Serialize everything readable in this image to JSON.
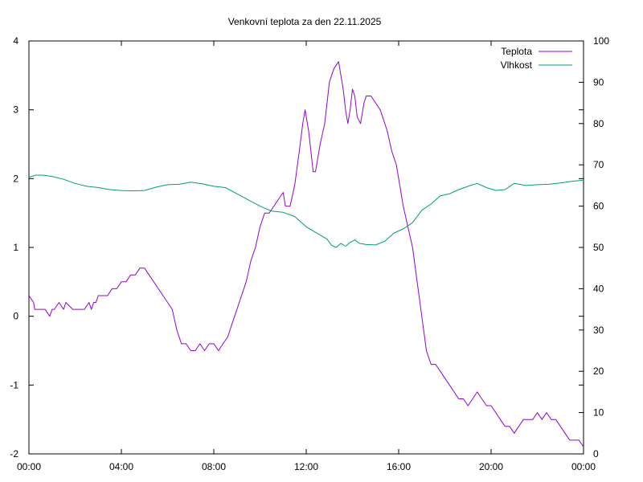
{
  "chart_data": {
    "type": "line",
    "title": "Venkovní teplota za den 22.11.2025",
    "xlabel": "",
    "ylabel": "",
    "y2label": "",
    "x_ticks": [
      "00:00",
      "04:00",
      "08:00",
      "12:00",
      "16:00",
      "20:00",
      "00:00"
    ],
    "xlim_hours": [
      0,
      24
    ],
    "ylim": [
      -2,
      4
    ],
    "y2lim": [
      0,
      100
    ],
    "y_ticks": [
      -2,
      -1,
      0,
      1,
      2,
      3,
      4
    ],
    "y2_ticks": [
      0,
      10,
      20,
      30,
      40,
      50,
      60,
      70,
      80,
      90,
      100
    ],
    "grid": false,
    "legend_position": "top-right",
    "series": [
      {
        "name": "Teplota",
        "axis": "left",
        "color": "#9400d3",
        "x": [
          0,
          0.2,
          0.25,
          0.5,
          0.7,
          0.9,
          1.0,
          1.1,
          1.3,
          1.5,
          1.6,
          1.9,
          2.0,
          2.2,
          2.4,
          2.6,
          2.7,
          2.8,
          2.9,
          3.0,
          3.2,
          3.4,
          3.6,
          3.8,
          4.0,
          4.2,
          4.4,
          4.6,
          4.8,
          5.0,
          5.2,
          5.4,
          5.6,
          5.8,
          6.0,
          6.2,
          6.4,
          6.6,
          6.8,
          7.0,
          7.2,
          7.4,
          7.6,
          7.8,
          8.0,
          8.2,
          8.4,
          8.6,
          8.8,
          9.0,
          9.2,
          9.4,
          9.6,
          9.8,
          10.0,
          10.2,
          10.4,
          10.6,
          10.8,
          11.0,
          11.1,
          11.3,
          11.5,
          11.7,
          11.85,
          11.95,
          12.0,
          12.1,
          12.2,
          12.3,
          12.4,
          12.5,
          12.6,
          12.8,
          13.0,
          13.1,
          13.2,
          13.4,
          13.5,
          13.6,
          13.7,
          13.8,
          13.9,
          14.0,
          14.1,
          14.2,
          14.35,
          14.5,
          14.6,
          14.8,
          15.0,
          15.2,
          15.3,
          15.5,
          15.7,
          15.9,
          16.0,
          16.2,
          16.4,
          16.6,
          16.8,
          17.0,
          17.2,
          17.4,
          17.6,
          17.8,
          18.0,
          18.2,
          18.4,
          18.6,
          18.8,
          19.0,
          19.2,
          19.4,
          19.6,
          19.8,
          20.0,
          20.2,
          20.4,
          20.6,
          20.8,
          21.0,
          21.2,
          21.4,
          21.6,
          21.8,
          22.0,
          22.2,
          22.4,
          22.6,
          22.8,
          23.0,
          23.2,
          23.4,
          23.6,
          23.8,
          24.0
        ],
        "values": [
          0.3,
          0.2,
          0.1,
          0.1,
          0.1,
          0.0,
          0.1,
          0.1,
          0.2,
          0.1,
          0.2,
          0.1,
          0.1,
          0.1,
          0.1,
          0.2,
          0.1,
          0.2,
          0.2,
          0.3,
          0.3,
          0.3,
          0.4,
          0.4,
          0.5,
          0.5,
          0.6,
          0.6,
          0.7,
          0.7,
          0.6,
          0.5,
          0.4,
          0.3,
          0.2,
          0.1,
          -0.2,
          -0.4,
          -0.4,
          -0.5,
          -0.5,
          -0.4,
          -0.5,
          -0.4,
          -0.4,
          -0.5,
          -0.4,
          -0.3,
          -0.1,
          0.1,
          0.3,
          0.5,
          0.8,
          1.0,
          1.3,
          1.5,
          1.5,
          1.6,
          1.7,
          1.8,
          1.6,
          1.6,
          1.9,
          2.4,
          2.8,
          3.0,
          2.9,
          2.7,
          2.4,
          2.1,
          2.1,
          2.3,
          2.5,
          2.8,
          3.4,
          3.5,
          3.6,
          3.7,
          3.5,
          3.3,
          3.0,
          2.8,
          3.0,
          3.3,
          3.2,
          2.9,
          2.8,
          3.1,
          3.2,
          3.2,
          3.1,
          3.0,
          2.9,
          2.7,
          2.4,
          2.2,
          2.0,
          1.6,
          1.3,
          1.0,
          0.5,
          0.0,
          -0.5,
          -0.7,
          -0.7,
          -0.8,
          -0.9,
          -1.0,
          -1.1,
          -1.2,
          -1.2,
          -1.3,
          -1.2,
          -1.1,
          -1.2,
          -1.3,
          -1.3,
          -1.4,
          -1.5,
          -1.6,
          -1.6,
          -1.7,
          -1.6,
          -1.5,
          -1.5,
          -1.5,
          -1.4,
          -1.5,
          -1.4,
          -1.5,
          -1.5,
          -1.6,
          -1.7,
          -1.8,
          -1.8,
          -1.8,
          -1.9
        ],
        "values_note_units": "°C"
      },
      {
        "name": "Vlhkost",
        "axis": "right",
        "color": "#009e73",
        "x": [
          0,
          0.3,
          0.6,
          1.0,
          1.5,
          2.0,
          2.5,
          3.0,
          3.5,
          4.0,
          4.5,
          5.0,
          5.5,
          6.0,
          6.5,
          7.0,
          7.5,
          8.0,
          8.5,
          9.0,
          9.5,
          10.0,
          10.5,
          11.0,
          11.5,
          12.0,
          12.3,
          12.6,
          12.9,
          13.1,
          13.3,
          13.5,
          13.7,
          13.9,
          14.1,
          14.3,
          14.6,
          15.0,
          15.4,
          15.8,
          16.2,
          16.6,
          17.0,
          17.4,
          17.8,
          18.2,
          18.6,
          19.0,
          19.4,
          19.8,
          20.2,
          20.6,
          21.0,
          21.5,
          22.0,
          22.5,
          23.0,
          23.5,
          24.0
        ],
        "values": [
          67,
          67.5,
          67.5,
          67.2,
          66.5,
          65.5,
          64.8,
          64.5,
          64.0,
          63.8,
          63.7,
          63.8,
          64.6,
          65.2,
          65.3,
          65.8,
          65.4,
          64.8,
          64.5,
          63.0,
          61.5,
          60.0,
          58.8,
          58.5,
          57.5,
          55.0,
          54.0,
          53.0,
          52.0,
          50.5,
          50.0,
          51.0,
          50.3,
          51.2,
          51.8,
          51.0,
          50.7,
          50.6,
          51.5,
          53.5,
          54.5,
          56.0,
          59.0,
          60.5,
          62.5,
          63.0,
          64.0,
          64.8,
          65.5,
          64.5,
          63.8,
          64.0,
          65.5,
          65.0,
          65.2,
          65.3,
          65.6,
          66.0,
          66.3
        ],
        "values_note_units": "%"
      }
    ]
  }
}
